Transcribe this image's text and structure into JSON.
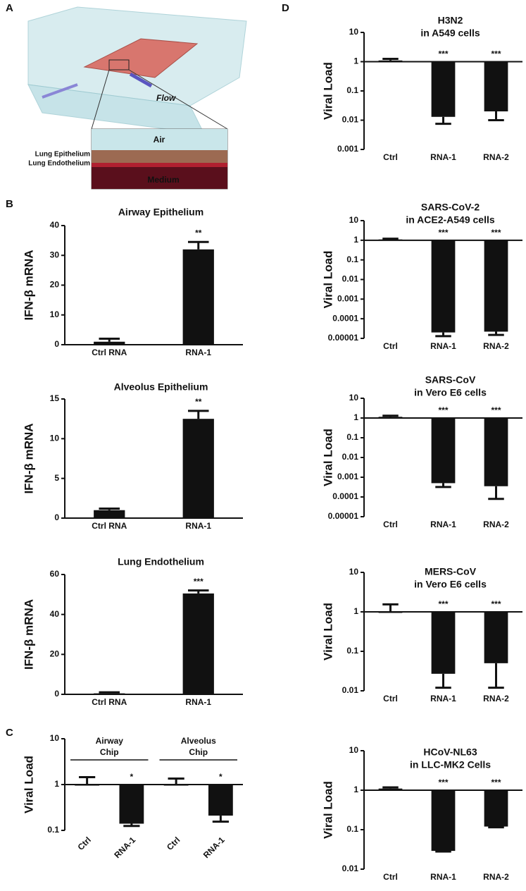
{
  "panel_labels": [
    "A",
    "B",
    "C",
    "D"
  ],
  "diagram": {
    "flow": "Flow",
    "air": "Air",
    "epithelium": "Lung Epithelium",
    "endothelium": "Lung Endothelium",
    "medium": "Medium"
  },
  "chart_data": [
    {
      "type": "bar",
      "title": "Airway Epithelium",
      "y_label": "IFN-β mRNA",
      "categories": [
        "Ctrl RNA",
        "RNA-1"
      ],
      "values": [
        1,
        32
      ],
      "errors": [
        1,
        2.5
      ],
      "annotations": [
        null,
        "**"
      ],
      "color": "#111111",
      "ylim": [
        0,
        40
      ],
      "yticks": [
        0,
        10,
        20,
        30,
        40
      ]
    },
    {
      "type": "bar",
      "title": "Alveolus Epithelium",
      "y_label": "IFN-β mRNA",
      "categories": [
        "Ctrl RNA",
        "RNA-1"
      ],
      "values": [
        1,
        12.5
      ],
      "errors": [
        0.2,
        1
      ],
      "annotations": [
        null,
        "**"
      ],
      "color": "#111111",
      "ylim": [
        0,
        15
      ],
      "yticks": [
        0,
        5,
        10,
        15
      ]
    },
    {
      "type": "bar",
      "title": "Lung Endothelium",
      "y_label": "IFN-β mRNA",
      "categories": [
        "Ctrl RNA",
        "RNA-1"
      ],
      "values": [
        0.5,
        50.5
      ],
      "errors": [
        0.5,
        1.5
      ],
      "annotations": [
        null,
        "***"
      ],
      "color": "#111111",
      "ylim": [
        0,
        60
      ],
      "yticks": [
        0,
        20,
        40,
        60
      ]
    },
    {
      "type": "bar",
      "y_label": "Viral Load",
      "log_scale": true,
      "baseline": 1,
      "groups": [
        [
          "Airway",
          "Chip"
        ],
        [
          "Alveolus",
          "Chip"
        ]
      ],
      "categories": [
        "Ctrl",
        "RNA-1",
        "Ctrl",
        "RNA-1"
      ],
      "values": [
        1,
        0.14,
        1,
        0.21
      ],
      "errors": [
        0.45,
        0.015,
        0.35,
        0.055
      ],
      "annotations": [
        null,
        "*",
        null,
        "*"
      ],
      "color": "#111111",
      "ylim": [
        0.1,
        10
      ],
      "yticks": [
        0.1,
        1,
        10
      ]
    },
    {
      "type": "bar",
      "title": "H3N2",
      "subtitle": "in A549 cells",
      "y_label": "Viral Load",
      "log_scale": true,
      "baseline": 1,
      "categories": [
        "Ctrl",
        "RNA-1",
        "RNA-2"
      ],
      "values": [
        1.1,
        0.013,
        0.02
      ],
      "errors": [
        0.15,
        0.0055,
        0.01
      ],
      "annotations": [
        null,
        "***",
        "***"
      ],
      "color": "#111111",
      "ylim": [
        0.001,
        10
      ],
      "yticks": [
        0.001,
        0.01,
        0.1,
        1,
        10
      ]
    },
    {
      "type": "bar",
      "title": "SARS-CoV-2",
      "subtitle": "in ACE2-A549 cells",
      "y_label": "Viral Load",
      "log_scale": true,
      "baseline": 1,
      "categories": [
        "Ctrl",
        "RNA-1",
        "RNA-2"
      ],
      "values": [
        1.1,
        2e-05,
        2.2e-05
      ],
      "errors": [
        0.1,
        7e-06,
        7e-06
      ],
      "annotations": [
        null,
        "***",
        "***"
      ],
      "color": "#111111",
      "ylim": [
        1e-05,
        10
      ],
      "yticks": [
        1e-05,
        0.0001,
        0.001,
        0.01,
        0.1,
        1,
        10
      ]
    },
    {
      "type": "bar",
      "title": "SARS-CoV",
      "subtitle": "in Vero E6 cells",
      "y_label": "Viral Load",
      "log_scale": true,
      "baseline": 1,
      "categories": [
        "Ctrl",
        "RNA-1",
        "RNA-2"
      ],
      "values": [
        1.15,
        0.0005,
        0.00035
      ],
      "errors": [
        0.15,
        0.00018,
        0.00027
      ],
      "annotations": [
        null,
        "***",
        "***"
      ],
      "color": "#111111",
      "ylim": [
        1e-05,
        10
      ],
      "yticks": [
        1e-05,
        0.0001,
        0.001,
        0.01,
        0.1,
        1,
        10
      ]
    },
    {
      "type": "bar",
      "title": "MERS-CoV",
      "subtitle": "in Vero E6 cells",
      "y_label": "Viral Load",
      "log_scale": true,
      "baseline": 1,
      "categories": [
        "Ctrl",
        "RNA-1",
        "RNA-2"
      ],
      "values": [
        1,
        0.027,
        0.05
      ],
      "errors": [
        0.55,
        0.015,
        0.038
      ],
      "annotations": [
        null,
        "***",
        "***"
      ],
      "color": "#111111",
      "ylim": [
        0.01,
        10
      ],
      "yticks": [
        0.01,
        0.1,
        1,
        10
      ]
    },
    {
      "type": "bar",
      "title": "HCoV-NL63",
      "subtitle": "in LLC-MK2 Cells",
      "y_label": "Viral Load",
      "log_scale": true,
      "baseline": 1,
      "categories": [
        "Ctrl",
        "RNA-1",
        "RNA-2"
      ],
      "values": [
        1.1,
        0.029,
        0.12
      ],
      "errors": [
        0.08,
        0.001,
        0.005
      ],
      "annotations": [
        null,
        "***",
        "***"
      ],
      "color": "#111111",
      "ylim": [
        0.01,
        10
      ],
      "yticks": [
        0.01,
        0.1,
        1,
        10
      ]
    }
  ]
}
